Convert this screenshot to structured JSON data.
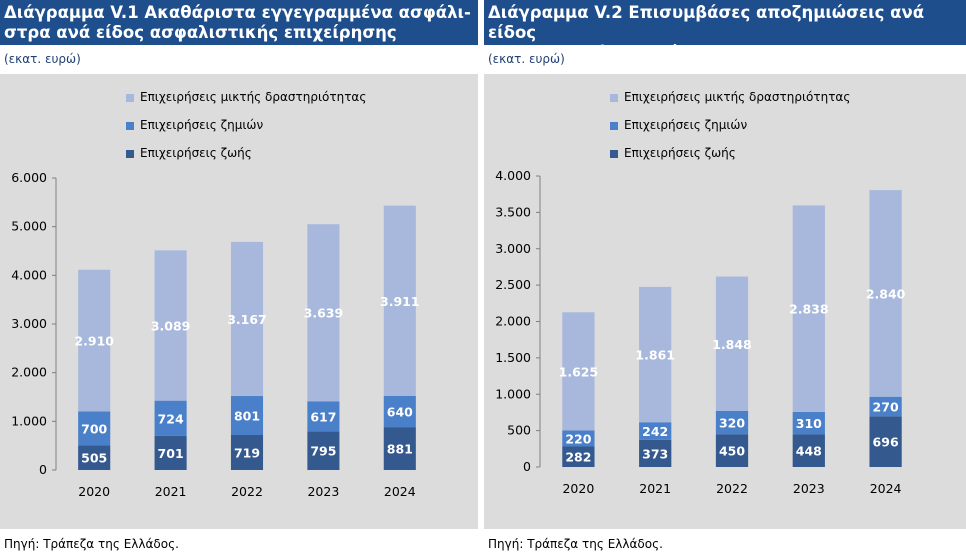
{
  "colors": {
    "mixed": "#a8b8dc",
    "nonlife": "#4a7fca",
    "life": "#34598f",
    "titlebar": "#1f4e8c"
  },
  "charts": [
    {
      "title": "Διάγραμμα V.1 Ακαθάριστα εγγεγραμμένα ασφάλιστρα ανά είδος ασφαλιστικής επιχείρησης",
      "title_line1": "Διάγραμμα V.1 Ακαθάριστα εγγεγραμμένα ασφάλι-",
      "title_line2": "στρα ανά είδος ασφαλιστικής επιχείρησης",
      "units": "(εκατ. ευρώ)",
      "source": "Πηγή: Τράπεζα της Ελλάδος.",
      "legend": [
        "Επιχειρήσεις μικτής δραστηριότητας",
        "Επιχειρήσεις ζημιών",
        "Επιχειρήσεις ζωής"
      ]
    },
    {
      "title": "Διάγραμμα V.2 Επισυμβάσες αποζημιώσεις ανά είδος ασφαλιστικής επιχείρησης",
      "title_line1": "Διάγραμμα V.2 Επισυμβάσες αποζημιώσεις ανά είδος",
      "title_line2": "ασφαλιστικής επιχείρησης",
      "units": "(εκατ. ευρώ)",
      "source": "Πηγή: Τράπεζα της Ελλάδος.",
      "legend": [
        "Επιχειρήσεις μικτής δραστηριότητας",
        "Επιχειρήσεις ζημιών",
        "Επιχειρήσεις ζωής"
      ]
    }
  ],
  "chart_data": [
    {
      "type": "bar",
      "stacked": true,
      "title": "Διάγραμμα V.1 Ακαθάριστα εγγεγραμμένα ασφάλιστρα ανά είδος ασφαλιστικής επιχείρησης",
      "categories": [
        "2020",
        "2021",
        "2022",
        "2023",
        "2024"
      ],
      "series": [
        {
          "name": "Επιχειρήσεις ζωής",
          "values": [
            505,
            701,
            719,
            795,
            881
          ],
          "labels": [
            "505",
            "701",
            "719",
            "795",
            "881"
          ]
        },
        {
          "name": "Επιχειρήσεις ζημιών",
          "values": [
            700,
            724,
            801,
            617,
            640
          ],
          "labels": [
            "700",
            "724",
            "801",
            "617",
            "640"
          ]
        },
        {
          "name": "Επιχειρήσεις μικτής δραστηριότητας",
          "values": [
            2910,
            3089,
            3167,
            3639,
            3911
          ],
          "labels": [
            "2.910",
            "3.089",
            "3.167",
            "3.639",
            "3.911"
          ]
        }
      ],
      "ylim": [
        0,
        6000
      ],
      "yticks": [
        0,
        1000,
        2000,
        3000,
        4000,
        5000,
        6000
      ],
      "ytick_labels": [
        "0",
        "1.000",
        "2.000",
        "3.000",
        "4.000",
        "5.000",
        "6.000"
      ],
      "grid": false,
      "legend_position": "top"
    },
    {
      "type": "bar",
      "stacked": true,
      "title": "Διάγραμμα V.2 Επισυμβάσες αποζημιώσεις ανά είδος ασφαλιστικής επιχείρησης",
      "categories": [
        "2020",
        "2021",
        "2022",
        "2023",
        "2024"
      ],
      "series": [
        {
          "name": "Επιχειρήσεις ζωής",
          "values": [
            282,
            373,
            450,
            448,
            696
          ],
          "labels": [
            "282",
            "373",
            "450",
            "448",
            "696"
          ]
        },
        {
          "name": "Επιχειρήσεις ζημιών",
          "values": [
            220,
            242,
            320,
            310,
            270
          ],
          "labels": [
            "220",
            "242",
            "320",
            "310",
            "270"
          ]
        },
        {
          "name": "Επιχειρήσεις μικτής δραστηριότητας",
          "values": [
            1625,
            1861,
            1848,
            2838,
            2840
          ],
          "labels": [
            "1.625",
            "1.861",
            "1.848",
            "2.838",
            "2.840"
          ]
        }
      ],
      "ylim": [
        0,
        4000
      ],
      "yticks": [
        0,
        500,
        1000,
        1500,
        2000,
        2500,
        3000,
        3500,
        4000
      ],
      "ytick_labels": [
        "0",
        "500",
        "1.000",
        "1.500",
        "2.000",
        "2.500",
        "3.000",
        "3.500",
        "4.000"
      ],
      "grid": false,
      "legend_position": "top"
    }
  ]
}
